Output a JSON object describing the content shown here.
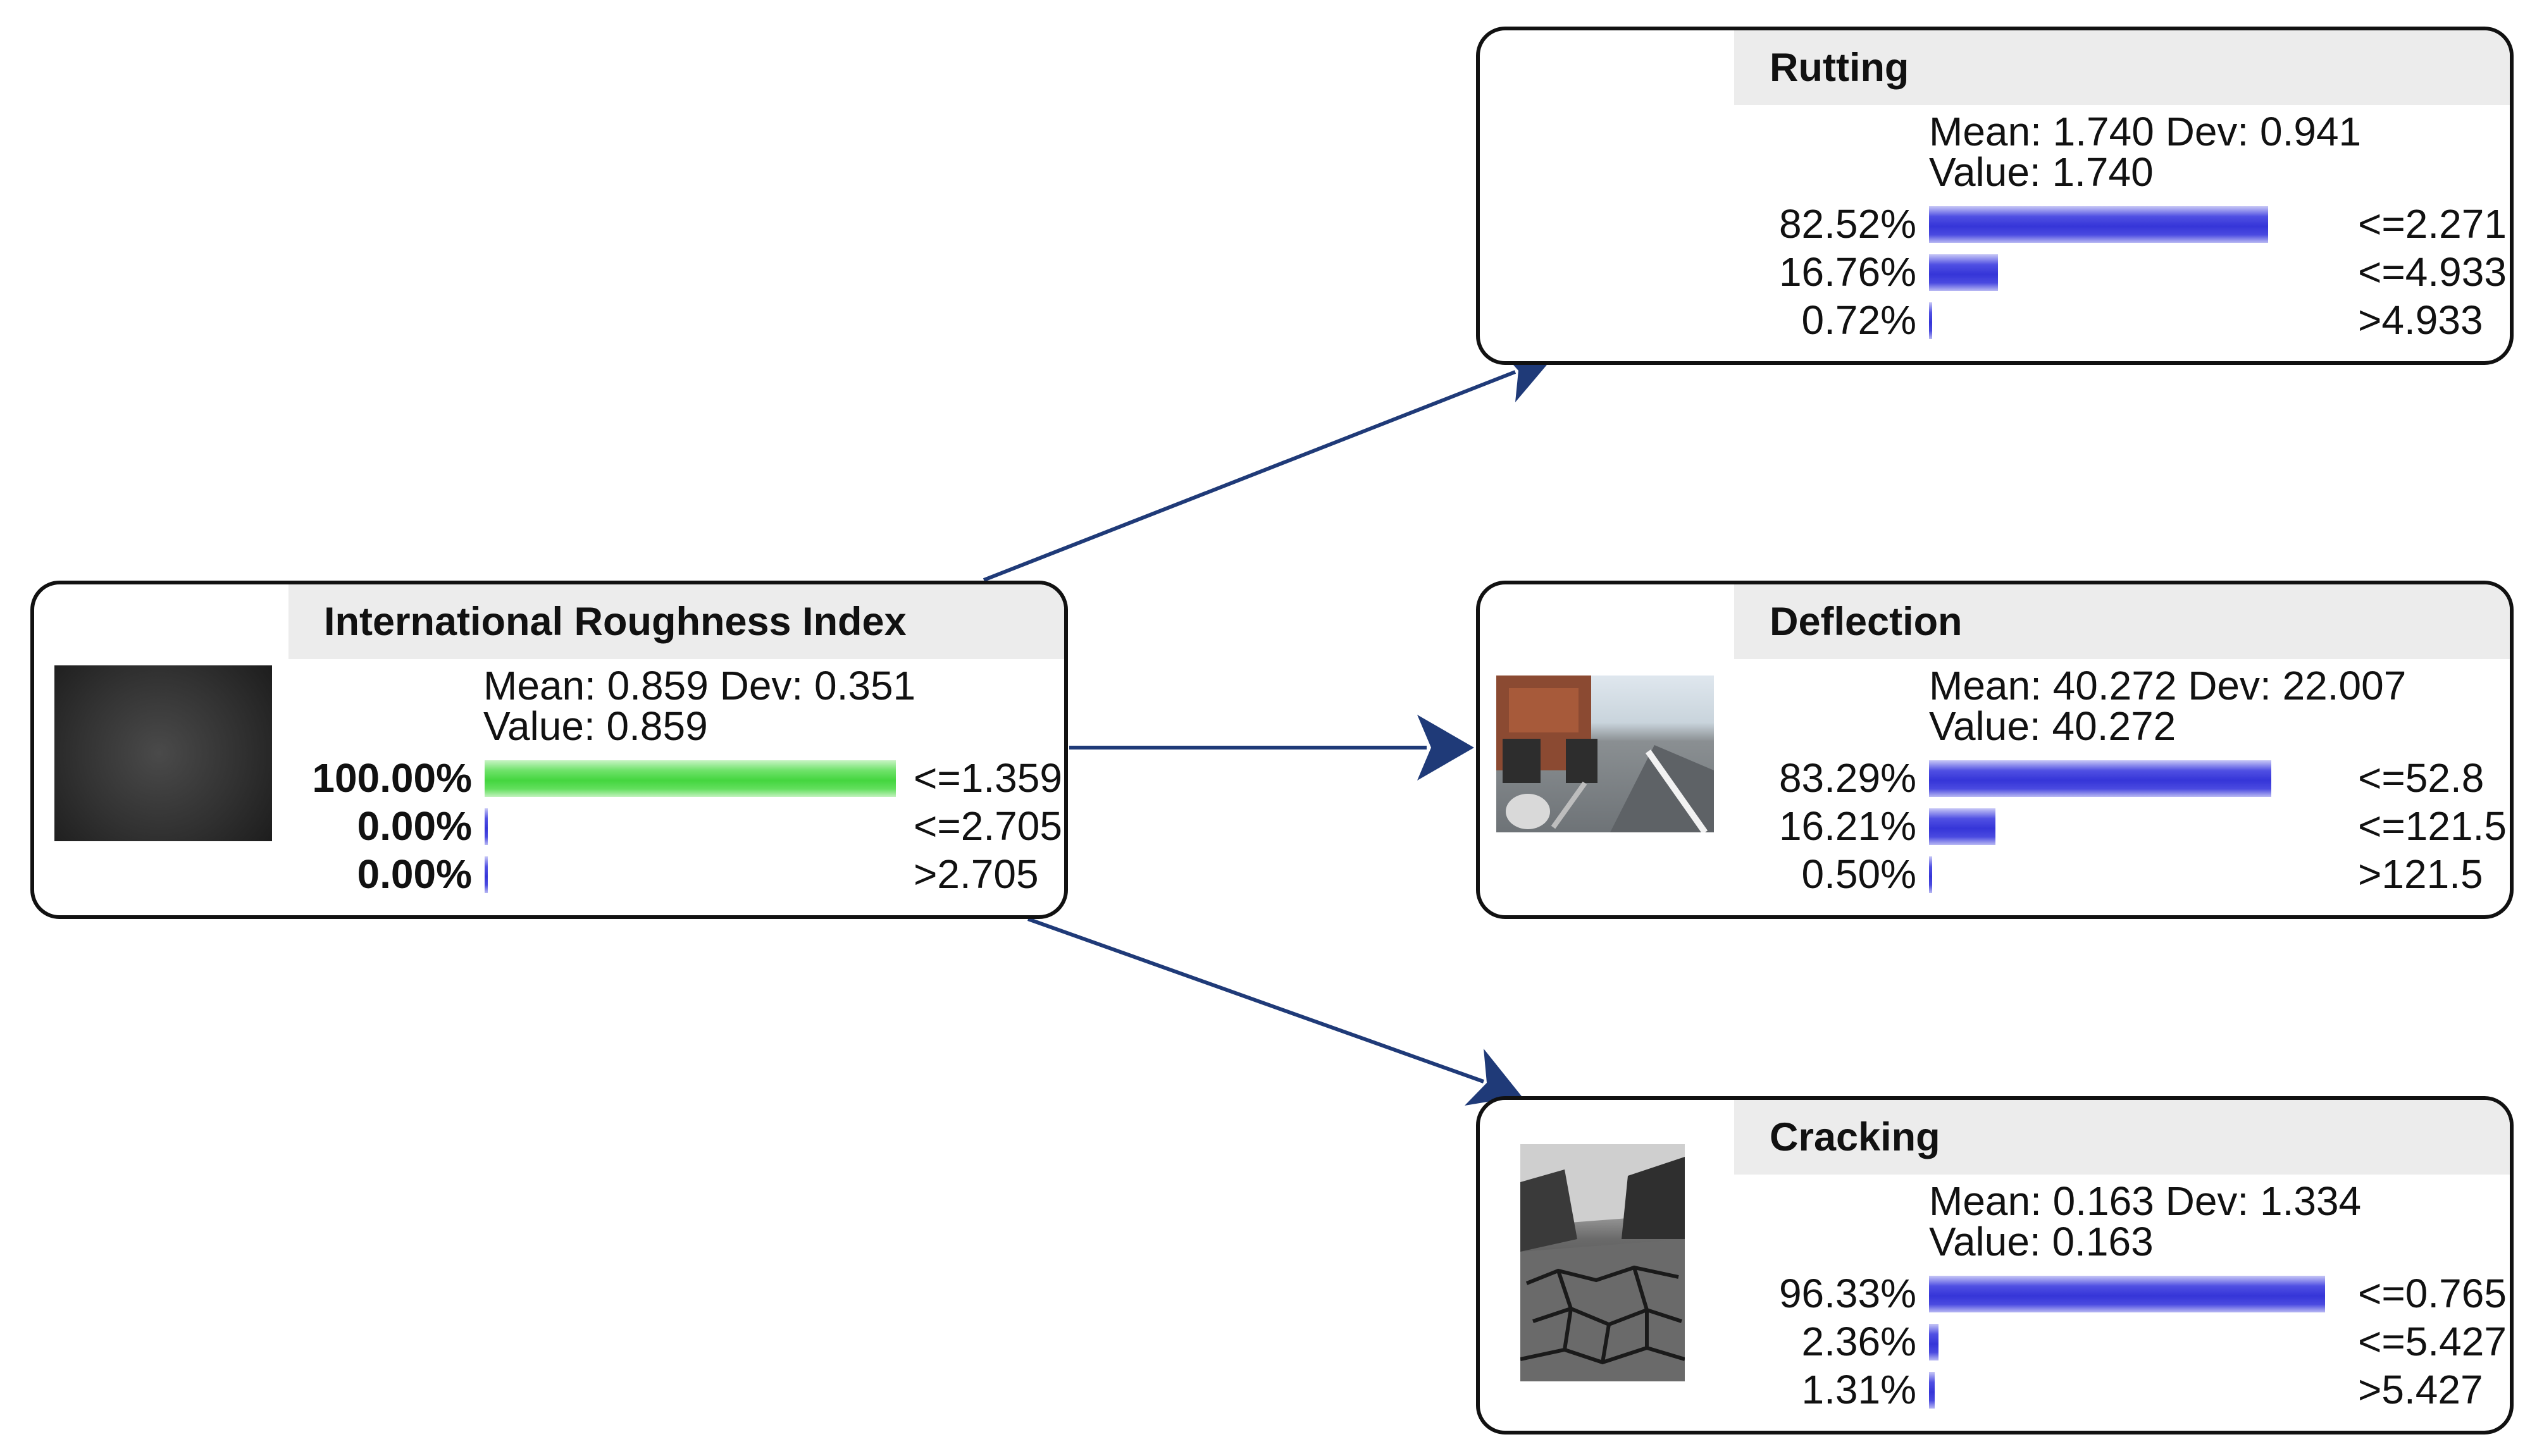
{
  "colors": {
    "edge": "#1f3a78",
    "node_border": "#111111",
    "title_bg": "#ececec",
    "bar_blue": "#3a3ad9",
    "bar_green": "#44d63f"
  },
  "nodes": {
    "iri": {
      "title": "International Roughness Index",
      "mean_dev": "Mean: 0.859 Dev: 0.351",
      "value": "Value: 0.859",
      "image": "asphalt-texture-photo",
      "states": [
        {
          "pct": "100.00%",
          "fraction": 1.0,
          "label": "<=1.359"
        },
        {
          "pct": "0.00%",
          "fraction": 0.0,
          "label": "<=2.705"
        },
        {
          "pct": "0.00%",
          "fraction": 0.0,
          "label": ">2.705"
        }
      ]
    },
    "rutting": {
      "title": "Rutting",
      "mean_dev": "Mean: 1.740 Dev: 0.941",
      "value": "Value: 1.740",
      "states": [
        {
          "pct": "82.52%",
          "fraction": 0.8252,
          "label": "<=2.271"
        },
        {
          "pct": "16.76%",
          "fraction": 0.1676,
          "label": "<=4.933"
        },
        {
          "pct": "0.72%",
          "fraction": 0.0072,
          "label": ">4.933"
        }
      ]
    },
    "deflection": {
      "title": "Deflection",
      "mean_dev": "Mean: 40.272 Dev: 22.007",
      "value": "Value: 40.272",
      "image": "deflection-testing-truck-photo",
      "states": [
        {
          "pct": "83.29%",
          "fraction": 0.8329,
          "label": "<=52.8"
        },
        {
          "pct": "16.21%",
          "fraction": 0.1621,
          "label": "<=121.5"
        },
        {
          "pct": "0.50%",
          "fraction": 0.005,
          "label": ">121.5"
        }
      ]
    },
    "cracking": {
      "title": "Cracking",
      "mean_dev": "Mean: 0.163 Dev: 1.334",
      "value": "Value: 0.163",
      "image": "cracked-road-photo",
      "states": [
        {
          "pct": "96.33%",
          "fraction": 0.9633,
          "label": "<=0.765"
        },
        {
          "pct": "2.36%",
          "fraction": 0.0236,
          "label": "<=5.427"
        },
        {
          "pct": "1.31%",
          "fraction": 0.0131,
          "label": ">5.427"
        }
      ]
    }
  },
  "edges": [
    {
      "from": "International Roughness Index",
      "to": "Rutting"
    },
    {
      "from": "International Roughness Index",
      "to": "Deflection"
    },
    {
      "from": "International Roughness Index",
      "to": "Cracking"
    }
  ]
}
